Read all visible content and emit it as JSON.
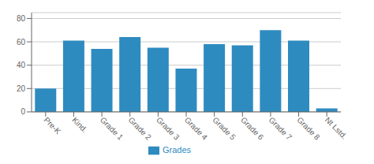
{
  "chart_data": {
    "type": "bar",
    "categories": [
      "Pre-K",
      "Kind.",
      "Grade 1",
      "Grade 2",
      "Grade 3",
      "Grade 4",
      "Grade 5",
      "Grade 6",
      "Grade 7",
      "Grade 8",
      "Nt Lstd."
    ],
    "series": [
      {
        "name": "Grades",
        "color": "#2e8bc0",
        "values": [
          20,
          61,
          54,
          64,
          55,
          37,
          58,
          57,
          70,
          61,
          3
        ]
      }
    ],
    "ylim": [
      0,
      85
    ],
    "yticks": [
      0,
      20,
      40,
      60,
      80
    ],
    "grid": true,
    "legend": "bottom"
  }
}
